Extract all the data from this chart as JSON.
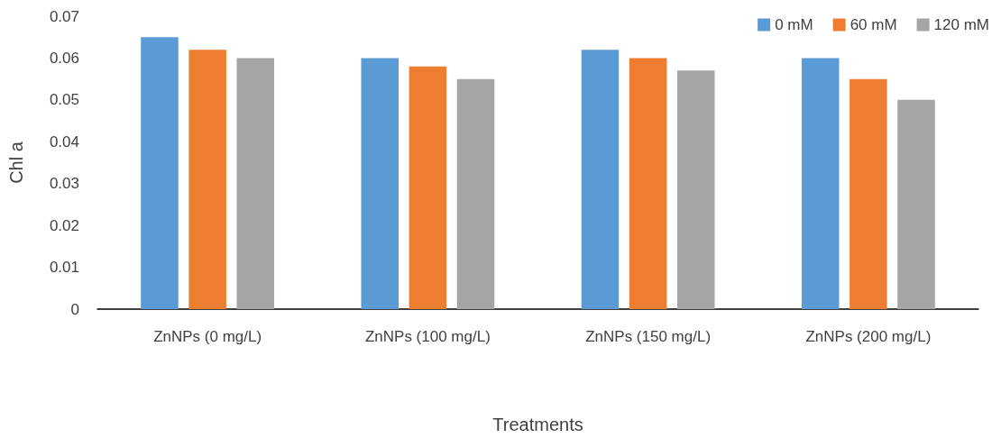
{
  "chart_data": {
    "type": "bar",
    "xlabel": "Treatments",
    "ylabel": "Chl a",
    "categories": [
      "ZnNPs (0 mg/L)",
      "ZnNPs (100 mg/L)",
      "ZnNPs (150 mg/L)",
      "ZnNPs (200 mg/L)"
    ],
    "series": [
      {
        "name": "0 mM",
        "color": "#5b9bd5",
        "values": [
          0.065,
          0.06,
          0.062,
          0.06
        ]
      },
      {
        "name": "60 mM",
        "color": "#ed7d31",
        "values": [
          0.062,
          0.058,
          0.06,
          0.055
        ]
      },
      {
        "name": "120 mM",
        "color": "#a5a5a5",
        "values": [
          0.06,
          0.055,
          0.057,
          0.05
        ]
      }
    ],
    "ylim": [
      0,
      0.07
    ],
    "yticks": [
      0,
      0.01,
      0.02,
      0.03,
      0.04,
      0.05,
      0.06,
      0.07
    ],
    "grid": false,
    "legend": "top right"
  }
}
